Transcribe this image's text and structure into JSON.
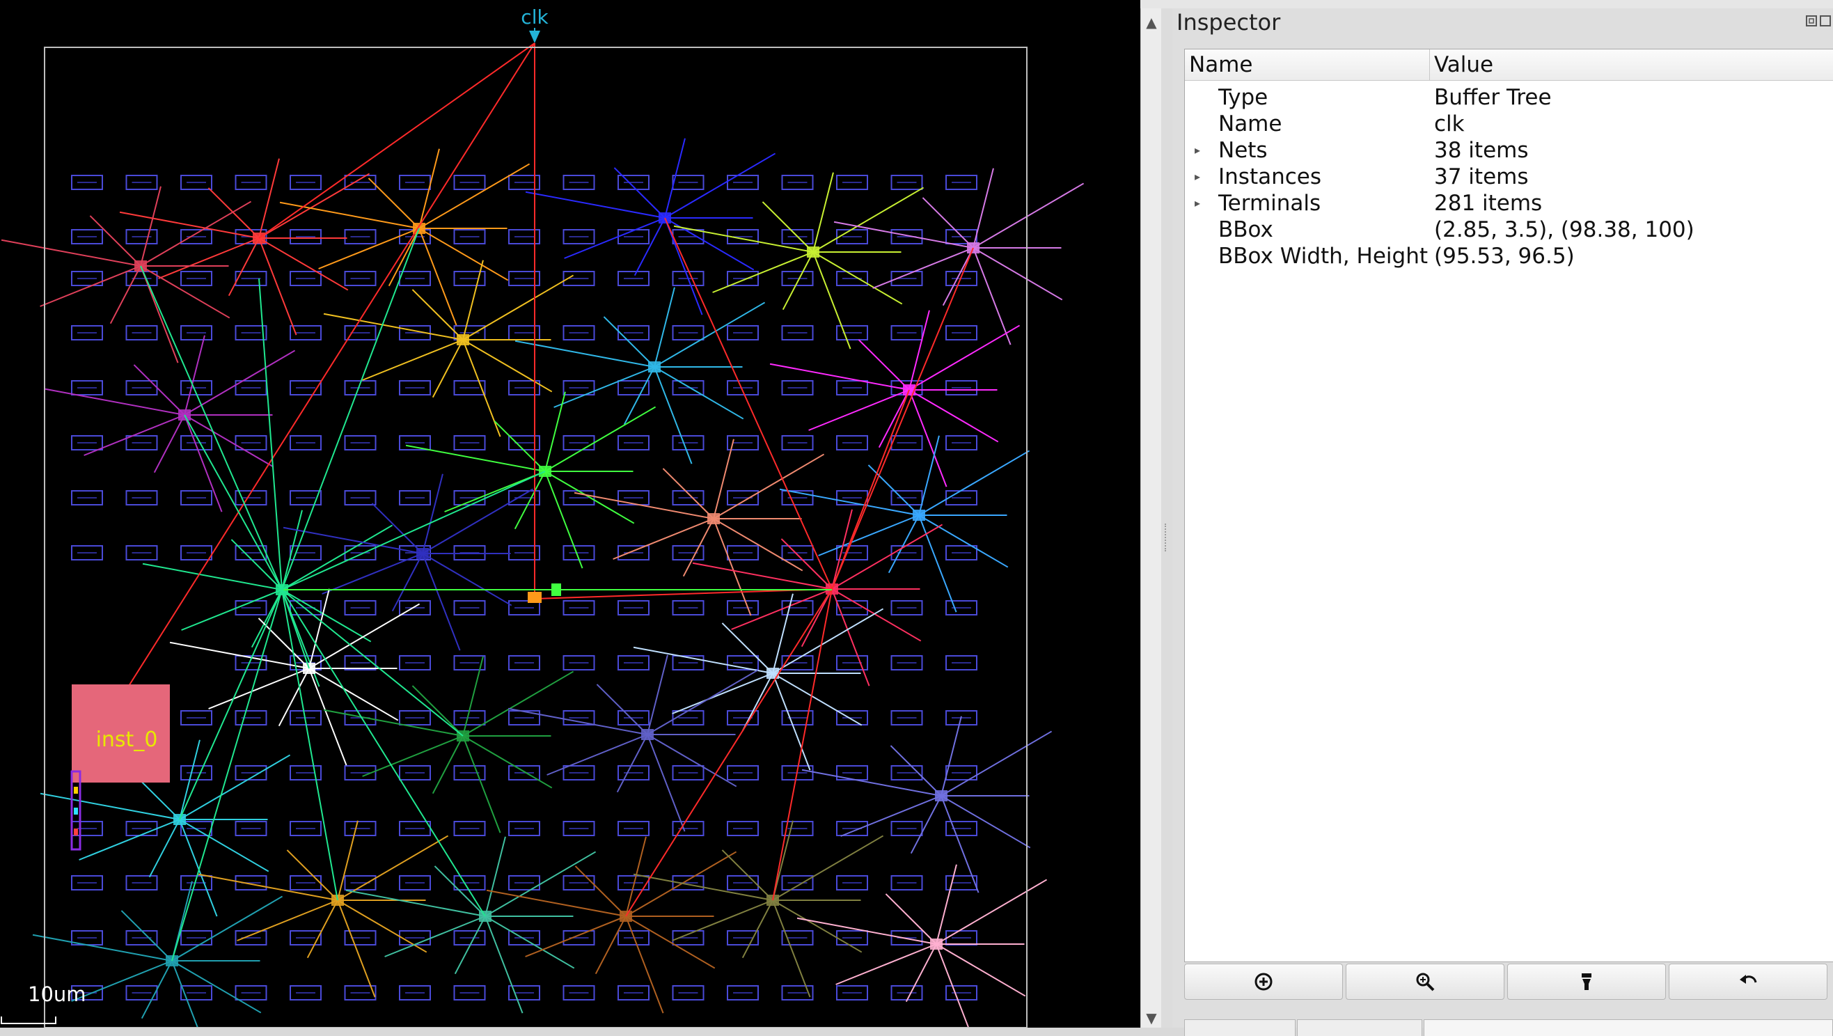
{
  "layout_view": {
    "clock_pin_label": "clk",
    "macro_label": "inst_0",
    "scale_label": "10um",
    "colors": {
      "background": "#000000",
      "die_outline": "#bfbfbf",
      "cell_outline": "#4a4ad8",
      "macro_fill": "#e5677a",
      "macro_label": "#e8e800",
      "clock_pin": "#24b4d8",
      "root_net": "#ff2a2a"
    },
    "clusters": [
      {
        "net": "red",
        "color": "#ff3a3a"
      },
      {
        "net": "orange",
        "color": "#ff9a1a"
      },
      {
        "net": "blue",
        "color": "#2a2aff"
      },
      {
        "net": "yellow-green",
        "color": "#c8f032"
      },
      {
        "net": "violet",
        "color": "#d67ae6"
      },
      {
        "net": "pink-red",
        "color": "#e0405a"
      },
      {
        "net": "gold",
        "color": "#f0c020"
      },
      {
        "net": "cyan",
        "color": "#30b8e8"
      },
      {
        "net": "magenta",
        "color": "#ff2aff"
      },
      {
        "net": "purple",
        "color": "#b030c0"
      },
      {
        "net": "green",
        "color": "#40ff40"
      },
      {
        "net": "salmon",
        "color": "#f08a70"
      },
      {
        "net": "sky",
        "color": "#3aa8ff"
      },
      {
        "net": "aqua-green",
        "color": "#20e890"
      },
      {
        "net": "navy",
        "color": "#3030c0"
      },
      {
        "net": "crimson",
        "color": "#ff3060"
      },
      {
        "net": "white",
        "color": "#ffffff"
      },
      {
        "net": "pale-blue",
        "color": "#c0e0ff"
      },
      {
        "net": "forest",
        "color": "#20a040"
      },
      {
        "net": "slate",
        "color": "#6060c8"
      },
      {
        "net": "periwinkle",
        "color": "#7070e0"
      },
      {
        "net": "teal",
        "color": "#30d0e0"
      },
      {
        "net": "amber",
        "color": "#e0a020"
      },
      {
        "net": "sea",
        "color": "#40c0a0"
      },
      {
        "net": "brown",
        "color": "#b06020"
      },
      {
        "net": "olive",
        "color": "#808040"
      },
      {
        "net": "light-pink",
        "color": "#ffb0d0"
      },
      {
        "net": "dark-teal",
        "color": "#20a0b0"
      }
    ]
  },
  "inspector": {
    "title": "Inspector",
    "columns": {
      "name": "Name",
      "value": "Value"
    },
    "rows": [
      {
        "name": "Type",
        "value": "Buffer Tree",
        "expandable": false
      },
      {
        "name": "Name",
        "value": "clk",
        "expandable": false
      },
      {
        "name": "Nets",
        "value": "38 items",
        "expandable": true
      },
      {
        "name": "Instances",
        "value": "37 items",
        "expandable": true
      },
      {
        "name": "Terminals",
        "value": "281 items",
        "expandable": true
      },
      {
        "name": "BBox",
        "value": "(2.85, 3.5), (98.38, 100)",
        "expandable": false
      },
      {
        "name": "BBox Width, Height",
        "value": "(95.53, 96.5)",
        "expandable": false
      }
    ],
    "buttons": [
      {
        "icon": "zoom-to-fit-icon"
      },
      {
        "icon": "zoom-in-icon"
      },
      {
        "icon": "flashlight-icon"
      },
      {
        "icon": "undo-icon"
      }
    ]
  }
}
